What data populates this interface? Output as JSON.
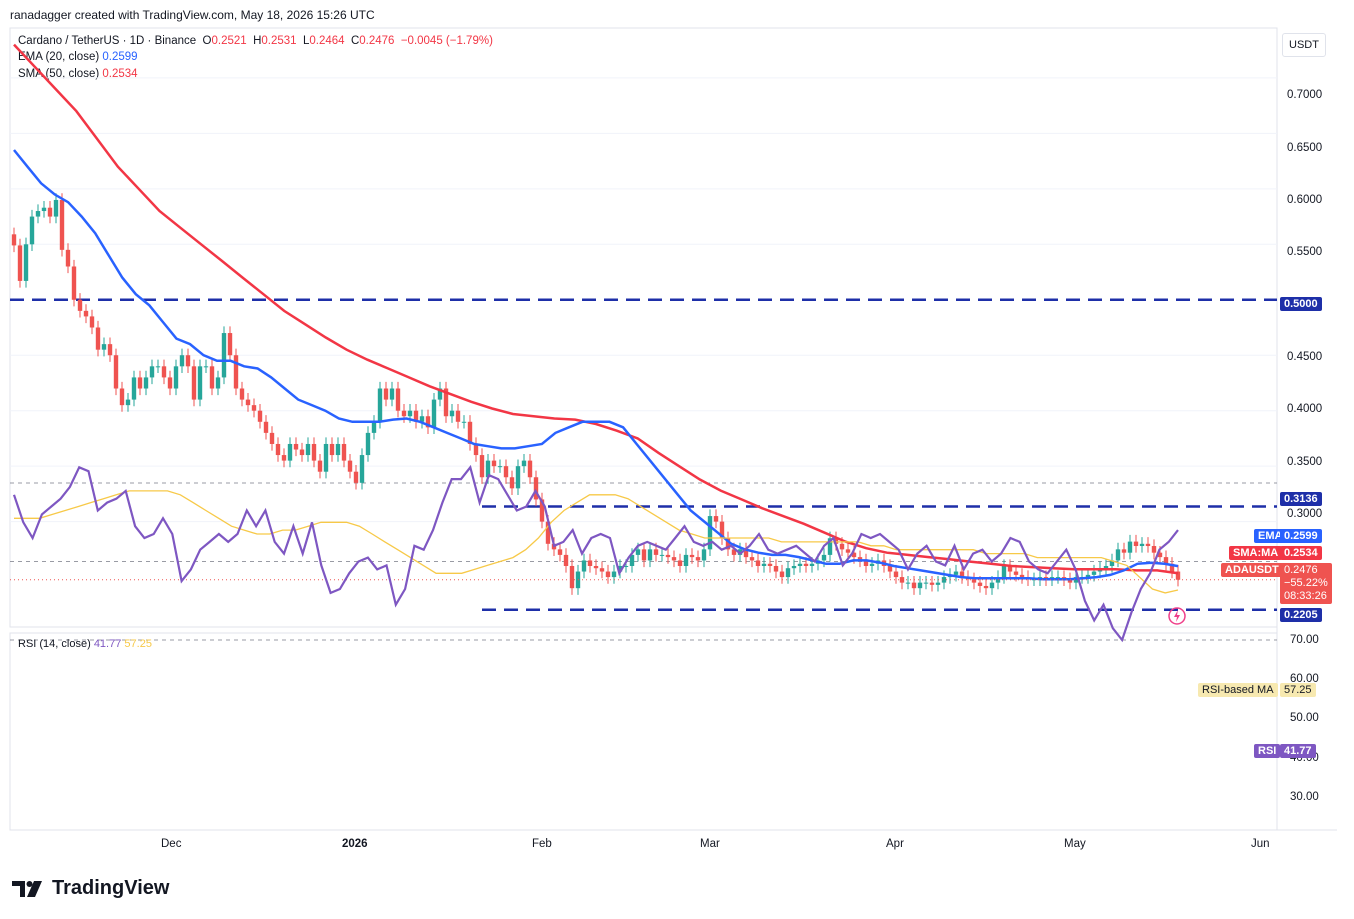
{
  "header": {
    "created_by": "ranadagger created with TradingView.com, May 18, 2026 15:26 UTC"
  },
  "symbol": {
    "title": "Cardano / TetherUS · 1D · Binance",
    "open_label": "O",
    "open": "0.2521",
    "high_label": "H",
    "high": "0.2531",
    "low_label": "L",
    "low": "0.2464",
    "close_label": "C",
    "close": "0.2476",
    "change": "−0.0045 (−1.79%)"
  },
  "indicators": {
    "ema_label": "EMA (20, close)",
    "ema_value": "0.2599",
    "sma_label": "SMA (50, close)",
    "sma_value": "0.2534"
  },
  "rsi_legend": {
    "label": "RSI (14, close)",
    "rsi_value": "41.77",
    "ma_value": "57.25"
  },
  "currency_button": "USDT",
  "price_axis": {
    "ticks": [
      "0.7000",
      "0.6500",
      "0.6000",
      "0.5500",
      "0.4500",
      "0.4000",
      "0.3500",
      "0.3000"
    ],
    "levels": {
      "upper": "0.5000",
      "mid": "0.3136",
      "lower": "0.2205"
    },
    "tags": {
      "ema_name": "EMA",
      "ema_val": "0.2599",
      "sma_name": "SMA:MA",
      "sma_val": "0.2534",
      "sym_name": "ADAUSDT",
      "sym_val": "0.2476",
      "pct": "−55.22%",
      "countdown": "08:33:26"
    }
  },
  "rsi_axis": {
    "ticks": [
      "70.00",
      "60.00",
      "50.00",
      "40.00",
      "30.00"
    ],
    "ma_tag_name": "RSI-based MA",
    "ma_tag_val": "57.25",
    "rsi_tag_name": "RSI",
    "rsi_tag_val": "41.77"
  },
  "time_axis": [
    "Dec",
    "2026",
    "Feb",
    "Mar",
    "Apr",
    "May",
    "Jun"
  ],
  "brand": "TradingView",
  "colors": {
    "up": "#26a69a",
    "down": "#ef5350",
    "ema": "#2962ff",
    "sma": "#f23645",
    "rsi": "#7e57c2",
    "rsi_ma": "#f7c948",
    "level_line": "#1e2fa8"
  },
  "chart_data": {
    "type": "candlestick",
    "ylim": [
      0.205,
      0.745
    ],
    "horizontal_levels": [
      0.5,
      0.3136,
      0.2205
    ],
    "closes": [
      0.549,
      0.517,
      0.55,
      0.575,
      0.58,
      0.583,
      0.575,
      0.59,
      0.545,
      0.53,
      0.5,
      0.49,
      0.485,
      0.475,
      0.455,
      0.46,
      0.45,
      0.42,
      0.405,
      0.41,
      0.43,
      0.42,
      0.43,
      0.44,
      0.44,
      0.43,
      0.42,
      0.44,
      0.45,
      0.44,
      0.41,
      0.44,
      0.44,
      0.42,
      0.43,
      0.47,
      0.45,
      0.42,
      0.41,
      0.405,
      0.4,
      0.39,
      0.38,
      0.37,
      0.36,
      0.355,
      0.37,
      0.365,
      0.36,
      0.37,
      0.355,
      0.345,
      0.37,
      0.36,
      0.37,
      0.355,
      0.345,
      0.335,
      0.36,
      0.38,
      0.39,
      0.42,
      0.41,
      0.42,
      0.4,
      0.395,
      0.4,
      0.39,
      0.395,
      0.385,
      0.41,
      0.42,
      0.395,
      0.4,
      0.39,
      0.39,
      0.37,
      0.36,
      0.34,
      0.355,
      0.35,
      0.35,
      0.34,
      0.33,
      0.35,
      0.355,
      0.34,
      0.32,
      0.3,
      0.28,
      0.275,
      0.27,
      0.26,
      0.24,
      0.255,
      0.265,
      0.26,
      0.258,
      0.255,
      0.25,
      0.255,
      0.26,
      0.26,
      0.27,
      0.275,
      0.265,
      0.275,
      0.27,
      0.27,
      0.268,
      0.265,
      0.26,
      0.27,
      0.268,
      0.265,
      0.275,
      0.305,
      0.3,
      0.285,
      0.275,
      0.27,
      0.275,
      0.268,
      0.265,
      0.26,
      0.262,
      0.26,
      0.255,
      0.25,
      0.258,
      0.26,
      0.262,
      0.26,
      0.262,
      0.265,
      0.27,
      0.285,
      0.28,
      0.275,
      0.272,
      0.268,
      0.265,
      0.26,
      0.262,
      0.265,
      0.26,
      0.255,
      0.25,
      0.245,
      0.245,
      0.24,
      0.245,
      0.245,
      0.243,
      0.245,
      0.25,
      0.252,
      0.255,
      0.25,
      0.248,
      0.245,
      0.242,
      0.24,
      0.245,
      0.25,
      0.26,
      0.255,
      0.252,
      0.25,
      0.248,
      0.248,
      0.25,
      0.248,
      0.25,
      0.25,
      0.248,
      0.245,
      0.25,
      0.25,
      0.252,
      0.255,
      0.258,
      0.26,
      0.265,
      0.275,
      0.272,
      0.282,
      0.278,
      0.28,
      0.278,
      0.272,
      0.268,
      0.262,
      0.255,
      0.2476
    ],
    "ema20": [
      0.635,
      0.62,
      0.605,
      0.595,
      0.588,
      0.575,
      0.56,
      0.54,
      0.52,
      0.505,
      0.495,
      0.48,
      0.465,
      0.46,
      0.45,
      0.445,
      0.445,
      0.44,
      0.438,
      0.43,
      0.42,
      0.41,
      0.405,
      0.4,
      0.393,
      0.39,
      0.39,
      0.39,
      0.392,
      0.393,
      0.39,
      0.385,
      0.38,
      0.375,
      0.37,
      0.368,
      0.366,
      0.366,
      0.368,
      0.37,
      0.38,
      0.385,
      0.39,
      0.39,
      0.39,
      0.385,
      0.37,
      0.355,
      0.34,
      0.325,
      0.31,
      0.3,
      0.29,
      0.28,
      0.275,
      0.272,
      0.27,
      0.27,
      0.268,
      0.265,
      0.262,
      0.262,
      0.265,
      0.265,
      0.263,
      0.26,
      0.258,
      0.256,
      0.254,
      0.252,
      0.25,
      0.249,
      0.249,
      0.249,
      0.249,
      0.249,
      0.248,
      0.248,
      0.248,
      0.249,
      0.25,
      0.252,
      0.256,
      0.262,
      0.263,
      0.262,
      0.2599
    ],
    "sma50": [
      0.73,
      0.71,
      0.69,
      0.67,
      0.645,
      0.62,
      0.6,
      0.58,
      0.565,
      0.55,
      0.535,
      0.52,
      0.505,
      0.49,
      0.478,
      0.466,
      0.455,
      0.446,
      0.438,
      0.43,
      0.422,
      0.415,
      0.408,
      0.402,
      0.397,
      0.395,
      0.393,
      0.392,
      0.388,
      0.382,
      0.375,
      0.362,
      0.35,
      0.338,
      0.328,
      0.32,
      0.312,
      0.305,
      0.298,
      0.29,
      0.282,
      0.276,
      0.272,
      0.27,
      0.268,
      0.266,
      0.264,
      0.262,
      0.26,
      0.259,
      0.258,
      0.257,
      0.257,
      0.257,
      0.256,
      0.256,
      0.2534
    ],
    "rsi": [
      33,
      40,
      44,
      38,
      36,
      34,
      31,
      26,
      27,
      37,
      35,
      34,
      32,
      41,
      44,
      43,
      39,
      43,
      55,
      52,
      47,
      45,
      43,
      45,
      43,
      37,
      41,
      37,
      45,
      48,
      41,
      48,
      40,
      51,
      58,
      57,
      53,
      50,
      49,
      52,
      51,
      61,
      57,
      46,
      47,
      42,
      35,
      29,
      29,
      26,
      35,
      28,
      29,
      33,
      37,
      36,
      32,
      36,
      46,
      45,
      42,
      48,
      44,
      43,
      44,
      53,
      49,
      46,
      45,
      46,
      47,
      44,
      41,
      45,
      46,
      45,
      47,
      46,
      48,
      46,
      43,
      47,
      48,
      47,
      46,
      48,
      50,
      46,
      44,
      51,
      48,
      43,
      44,
      43,
      45,
      47,
      52,
      48,
      46,
      50,
      51,
      46,
      52,
      48,
      47,
      50,
      48,
      44,
      45,
      50,
      52,
      53,
      50,
      47,
      52,
      60,
      65,
      61,
      67,
      70,
      63,
      57,
      53,
      47,
      45,
      42
    ],
    "rsi_ma": [
      39,
      39,
      39,
      38,
      37,
      36,
      35,
      34,
      33,
      32,
      32,
      32,
      32,
      33,
      35,
      37,
      39,
      41,
      42,
      43,
      43,
      42,
      42,
      41,
      40,
      40,
      40,
      41,
      43,
      45,
      47,
      49,
      51,
      53,
      53,
      53,
      52,
      51,
      50,
      49,
      47,
      44,
      40,
      37,
      35,
      33,
      33,
      33,
      34,
      36,
      38,
      40,
      42,
      43,
      44,
      44,
      44,
      44,
      44,
      44,
      45,
      45,
      45,
      45,
      45,
      45,
      45,
      46,
      46,
      47,
      47,
      47,
      47,
      47,
      47,
      47,
      48,
      48,
      48,
      48,
      49,
      49,
      49,
      49,
      49,
      49,
      50,
      51,
      54,
      57,
      58,
      57.25
    ]
  }
}
